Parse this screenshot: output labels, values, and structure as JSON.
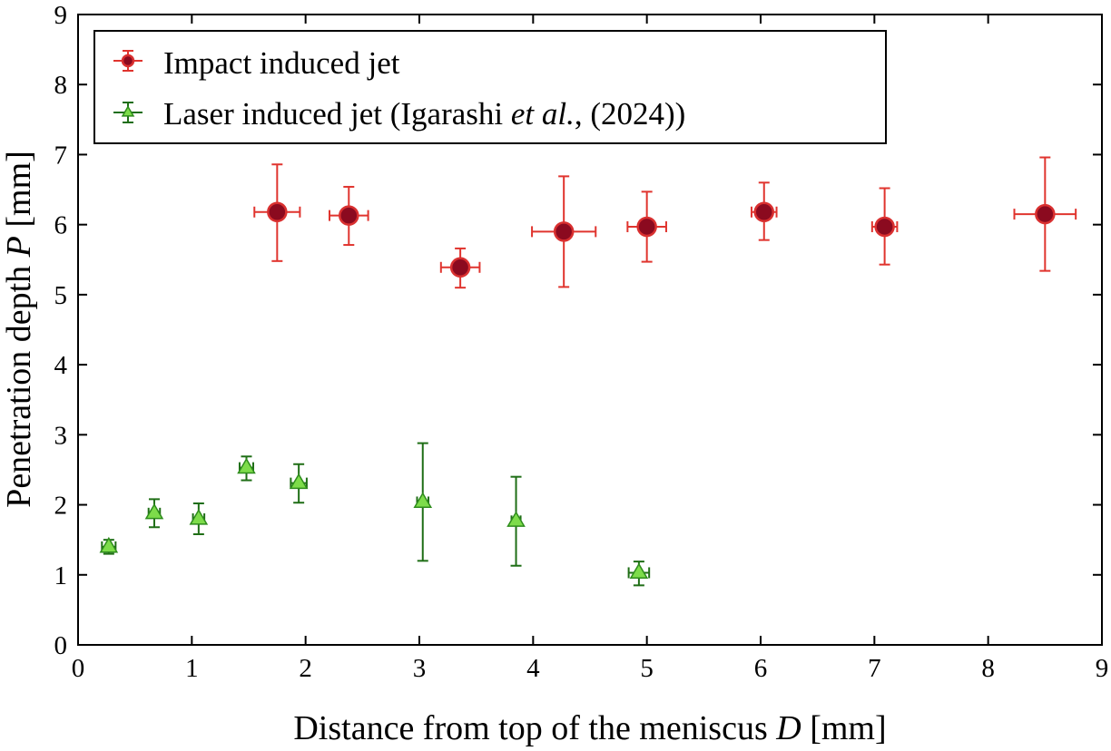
{
  "chart_data": {
    "type": "scatter",
    "xlabel": {
      "prefix": "Distance from top of the meniscus ",
      "var": "D",
      "suffix": " [mm]"
    },
    "ylabel": {
      "prefix": "Penetration depth ",
      "var": "P",
      "suffix": " [mm]"
    },
    "xlim": [
      0,
      9
    ],
    "ylim": [
      0,
      9
    ],
    "xticks": [
      "0",
      "1",
      "2",
      "3",
      "4",
      "5",
      "6",
      "7",
      "8",
      "9"
    ],
    "yticks": [
      "0",
      "1",
      "2",
      "3",
      "4",
      "5",
      "6",
      "7",
      "8",
      "9"
    ],
    "legend_position": "top-left",
    "series": [
      {
        "name": "Impact induced jet",
        "legend_parts": [
          "Impact induced jet"
        ],
        "marker": "circle",
        "marker_color": "#8b0a1f",
        "marker_edge": "#d93030",
        "errorbar_color": "#e0342e",
        "points": [
          {
            "x": 1.75,
            "y": 6.18,
            "x_err": 0.2,
            "y_err_low": 0.7,
            "y_err_high": 0.68
          },
          {
            "x": 2.38,
            "y": 6.13,
            "x_err": 0.17,
            "y_err_low": 0.42,
            "y_err_high": 0.41
          },
          {
            "x": 3.36,
            "y": 5.39,
            "x_err": 0.17,
            "y_err_low": 0.29,
            "y_err_high": 0.27
          },
          {
            "x": 4.27,
            "y": 5.9,
            "x_err": 0.28,
            "y_err_low": 0.79,
            "y_err_high": 0.79
          },
          {
            "x": 5.0,
            "y": 5.97,
            "x_err": 0.17,
            "y_err_low": 0.5,
            "y_err_high": 0.5
          },
          {
            "x": 6.03,
            "y": 6.18,
            "x_err": 0.11,
            "y_err_low": 0.4,
            "y_err_high": 0.42
          },
          {
            "x": 7.09,
            "y": 5.97,
            "x_err": 0.11,
            "y_err_low": 0.54,
            "y_err_high": 0.55
          },
          {
            "x": 8.5,
            "y": 6.15,
            "x_err": 0.27,
            "y_err_low": 0.81,
            "y_err_high": 0.81
          }
        ]
      },
      {
        "name": "Laser induced jet (Igarashi et al., (2024))",
        "legend_parts": [
          "Laser induced jet (Igarashi ",
          "et al.",
          ", (2024))"
        ],
        "marker": "triangle",
        "marker_color": "#7ddc4a",
        "marker_edge": "#2e8c1c",
        "errorbar_color": "#1f6e16",
        "points": [
          {
            "x": 0.27,
            "y": 1.4,
            "x_err": 0.06,
            "y_err_low": 0.1,
            "y_err_high": 0.1
          },
          {
            "x": 0.67,
            "y": 1.88,
            "x_err": 0.05,
            "y_err_low": 0.2,
            "y_err_high": 0.2
          },
          {
            "x": 1.06,
            "y": 1.8,
            "x_err": 0.05,
            "y_err_low": 0.22,
            "y_err_high": 0.22
          },
          {
            "x": 1.48,
            "y": 2.53,
            "x_err": 0.06,
            "y_err_low": 0.18,
            "y_err_high": 0.16
          },
          {
            "x": 1.94,
            "y": 2.31,
            "x_err": 0.07,
            "y_err_low": 0.28,
            "y_err_high": 0.27
          },
          {
            "x": 3.03,
            "y": 2.04,
            "x_err": 0.05,
            "y_err_low": 0.84,
            "y_err_high": 0.84
          },
          {
            "x": 3.85,
            "y": 1.77,
            "x_err": 0.04,
            "y_err_low": 0.64,
            "y_err_high": 0.63
          },
          {
            "x": 4.93,
            "y": 1.03,
            "x_err": 0.09,
            "y_err_low": 0.18,
            "y_err_high": 0.16
          }
        ]
      }
    ]
  }
}
